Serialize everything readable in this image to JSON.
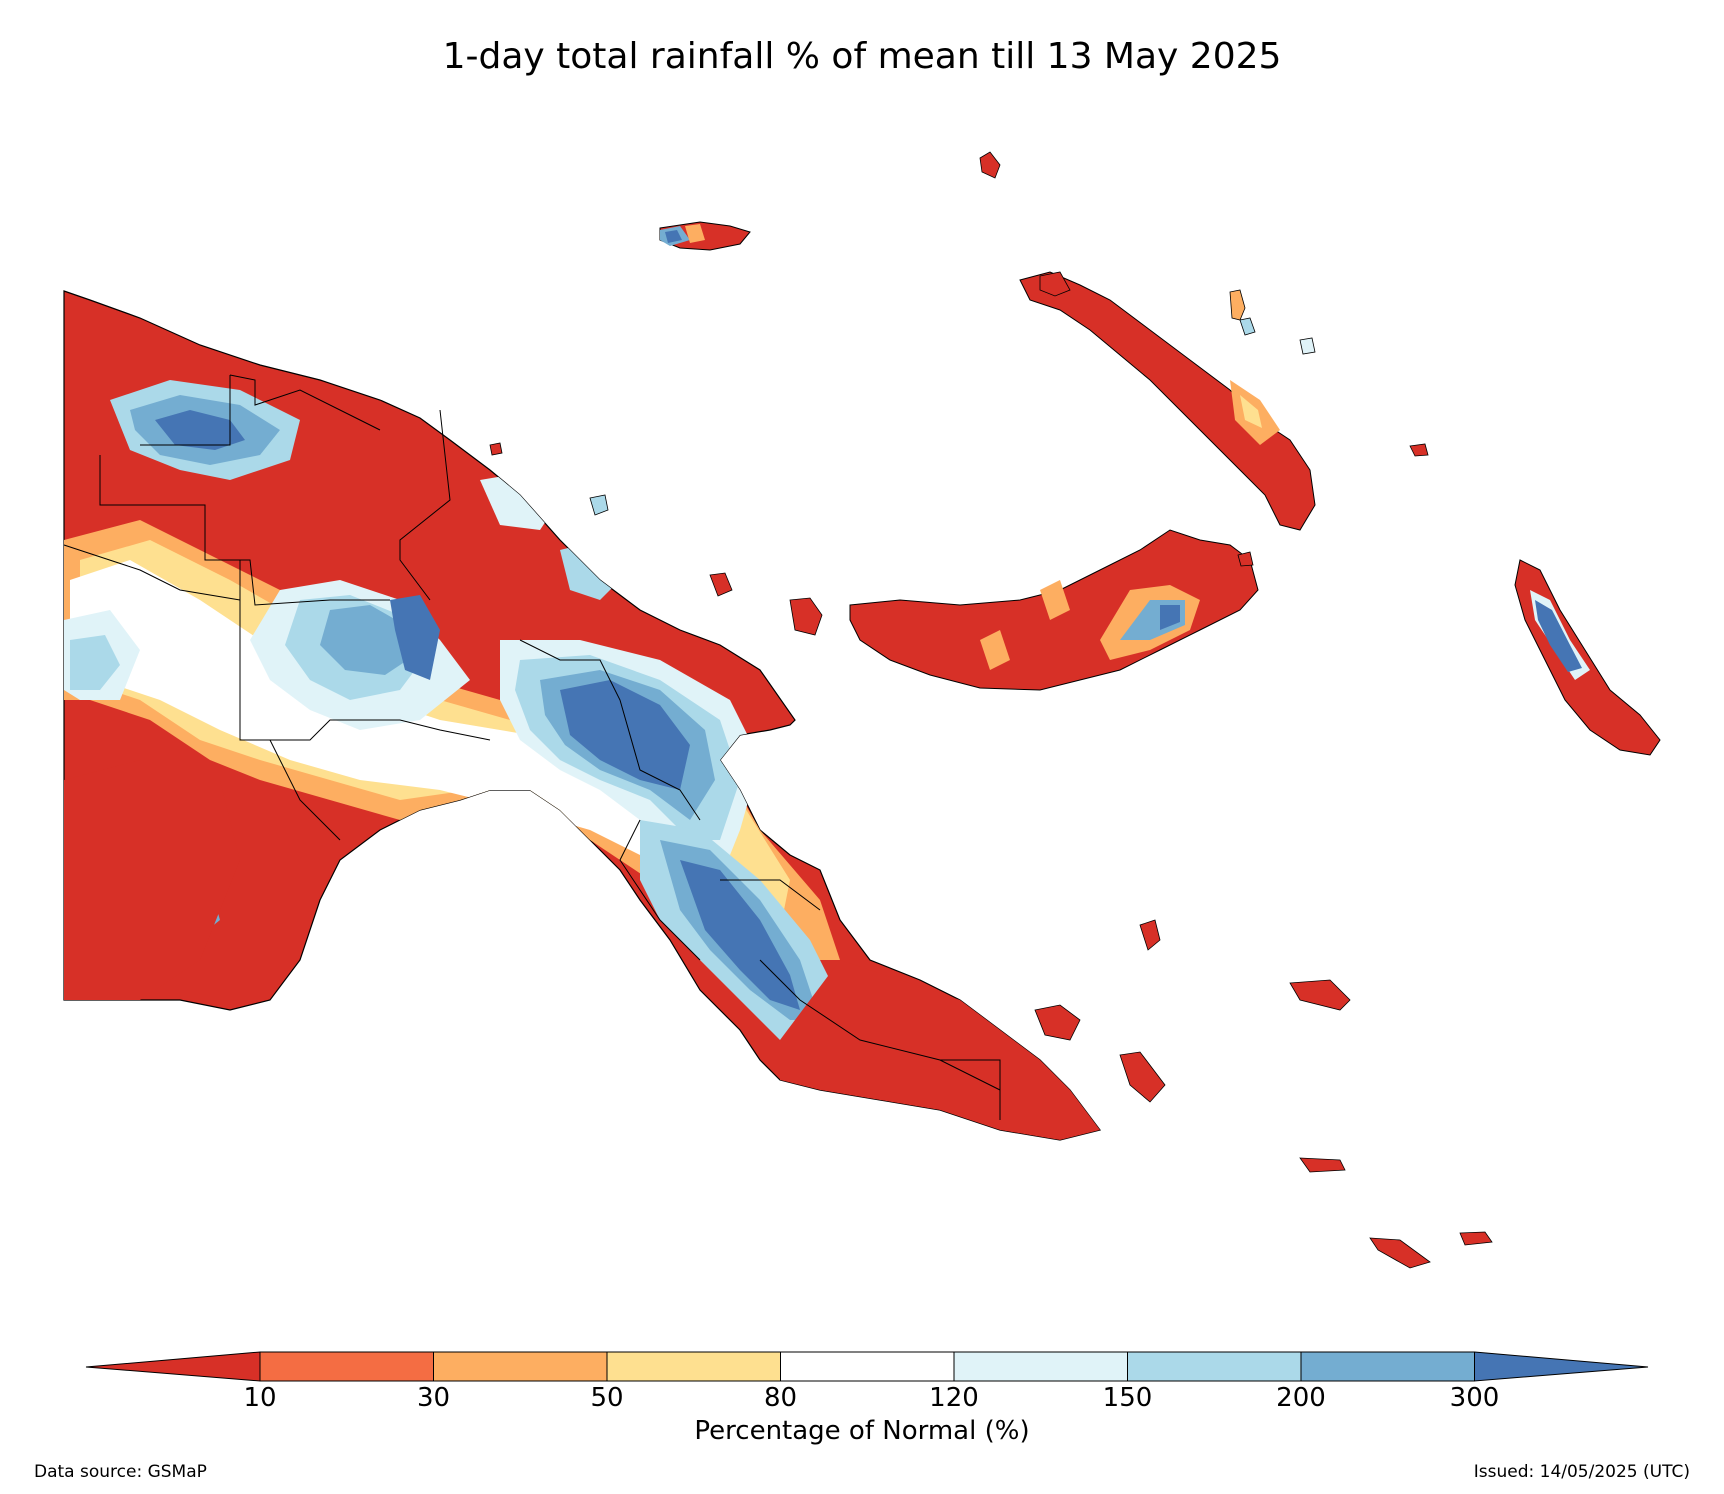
{
  "title": "1-day total rainfall % of mean till 13 May 2025",
  "colorbar": {
    "label": "Percentage of Normal (%)",
    "ticks": [
      "10",
      "30",
      "50",
      "80",
      "120",
      "150",
      "200",
      "300"
    ],
    "colors": {
      "lt10": "#d73027",
      "10-30": "#f46d43",
      "30-50": "#fdae61",
      "50-80": "#fee090",
      "80-120": "#ffffff",
      "120-150": "#e0f3f8",
      "150-200": "#abd9e9",
      "200-300": "#74add1",
      "gt300": "#4575b4"
    }
  },
  "footer": {
    "source": "Data source: GSMaP",
    "issued": "Issued: 14/05/2025 (UTC)"
  }
}
